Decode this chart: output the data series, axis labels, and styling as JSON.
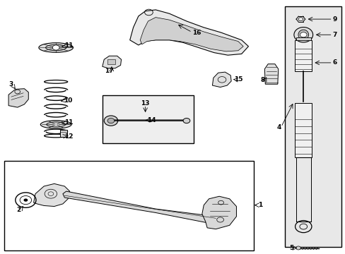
{
  "bg_color": "#ffffff",
  "fig_width": 4.89,
  "fig_height": 3.6,
  "dpi": 100,
  "line_color": "#000000",
  "shaded_color": "#e8e8e8"
}
